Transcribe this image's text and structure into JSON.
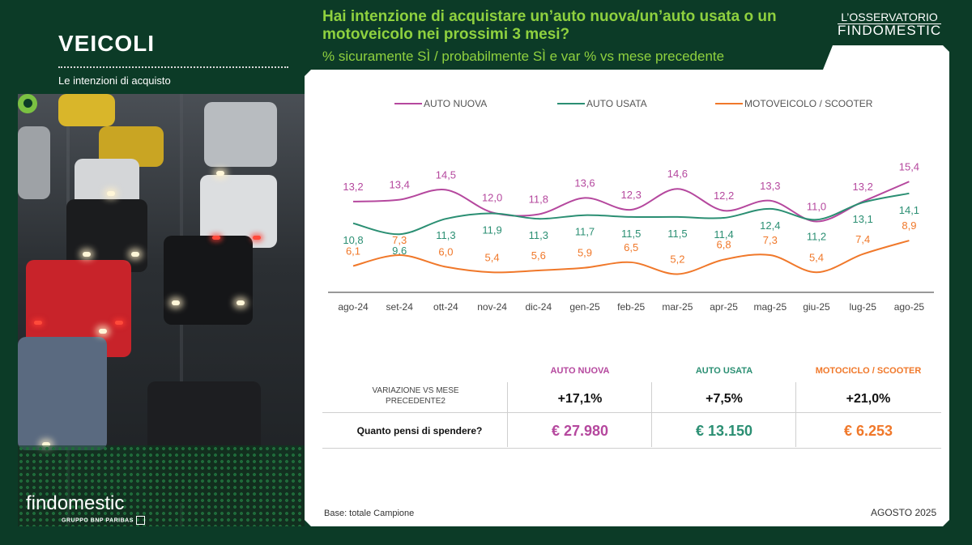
{
  "header": {
    "section": "VEICOLI",
    "section_sub": "Le intenzioni di acquisto",
    "question": "Hai intenzione di acquistare un’auto nuova/un’auto usata o un motoveicolo nei prossimi 3 mesi?",
    "question_sub": "% sicuramente SÌ / probabilmente SÌ e var % vs mese precedente",
    "obs_top": "L’OSSERVATORIO",
    "obs_bottom": "FINDOMESTIC"
  },
  "brand": {
    "name": "findomestic",
    "group": "GRUPPO BNP PARIBAS"
  },
  "colors": {
    "auto_nuova": "#b5489e",
    "auto_usata": "#2b8f73",
    "moto": "#f0782a",
    "accent_green": "#8fd13f"
  },
  "chart_data": {
    "type": "line",
    "x": [
      "ago-24",
      "set-24",
      "ott-24",
      "nov-24",
      "dic-24",
      "gen-25",
      "feb-25",
      "mar-25",
      "apr-25",
      "mag-25",
      "giu-25",
      "lug-25",
      "ago-25"
    ],
    "series": [
      {
        "name": "AUTO NUOVA",
        "values": [
          13.2,
          13.4,
          14.5,
          12.0,
          11.8,
          13.6,
          12.3,
          14.6,
          12.2,
          13.3,
          11.0,
          13.2,
          15.4
        ],
        "labels": [
          "13,2",
          "13,4",
          "14,5",
          "12,0",
          "11,8",
          "13,6",
          "12,3",
          "14,6",
          "12,2",
          "13,3",
          "11,0",
          "13,2",
          "15,4"
        ]
      },
      {
        "name": "AUTO USATA",
        "values": [
          10.8,
          9.6,
          11.3,
          11.9,
          11.3,
          11.7,
          11.5,
          11.5,
          11.4,
          12.4,
          11.2,
          13.1,
          14.1
        ],
        "labels": [
          "10,8",
          "9,6",
          "11,3",
          "11,9",
          "11,3",
          "11,7",
          "11,5",
          "11,5",
          "11,4",
          "12,4",
          "11,2",
          "13,1",
          "14,1"
        ]
      },
      {
        "name": "MOTOVEICOLO / SCOOTER",
        "values": [
          6.1,
          7.3,
          6.0,
          5.4,
          5.6,
          5.9,
          6.5,
          5.2,
          6.8,
          7.3,
          5.4,
          7.4,
          8.9
        ],
        "labels": [
          "6,1",
          "7,3",
          "6,0",
          "5,4",
          "5,6",
          "5,9",
          "6,5",
          "5,2",
          "6,8",
          "7,3",
          "5,4",
          "7,4",
          "8,9"
        ]
      }
    ],
    "legend_position": "top"
  },
  "table": {
    "headers": [
      "AUTO NUOVA",
      "AUTO USATA",
      "MOTOCICLO / SCOOTER"
    ],
    "row1_label": "VARIAZIONE VS MESE PRECEDENTE2",
    "row1": [
      "+17,1%",
      "+7,5%",
      "+21,0%"
    ],
    "row2_label": "Quanto pensi di spendere?",
    "row2": [
      "€ 27.980",
      "€ 13.150",
      "€ 6.253"
    ]
  },
  "footer": {
    "base": "Base: totale Campione",
    "date": "AGOSTO 2025"
  }
}
